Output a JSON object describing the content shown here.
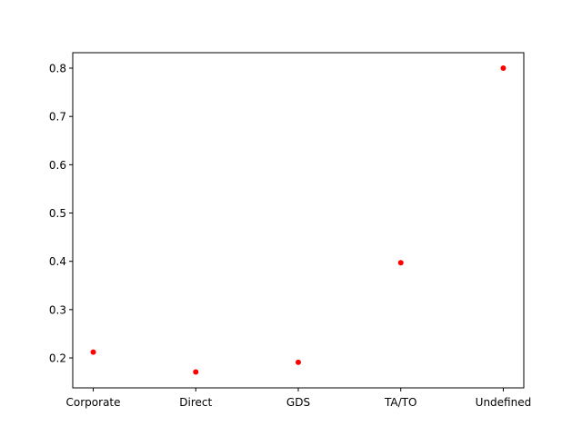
{
  "chart_data": {
    "type": "scatter",
    "title": "",
    "xlabel": "",
    "ylabel": "",
    "categories": [
      "Corporate",
      "Direct",
      "GDS",
      "TA/TO",
      "Undefined"
    ],
    "values": [
      0.212,
      0.171,
      0.191,
      0.397,
      0.8
    ],
    "ylim": [
      0.138,
      0.832
    ],
    "yticks": [
      "0.2",
      "0.3",
      "0.4",
      "0.5",
      "0.6",
      "0.7",
      "0.8"
    ],
    "ytick_values": [
      0.2,
      0.3,
      0.4,
      0.5,
      0.6,
      0.7,
      0.8
    ],
    "marker_color": "#ff0000",
    "grid": false,
    "legend": "none"
  }
}
